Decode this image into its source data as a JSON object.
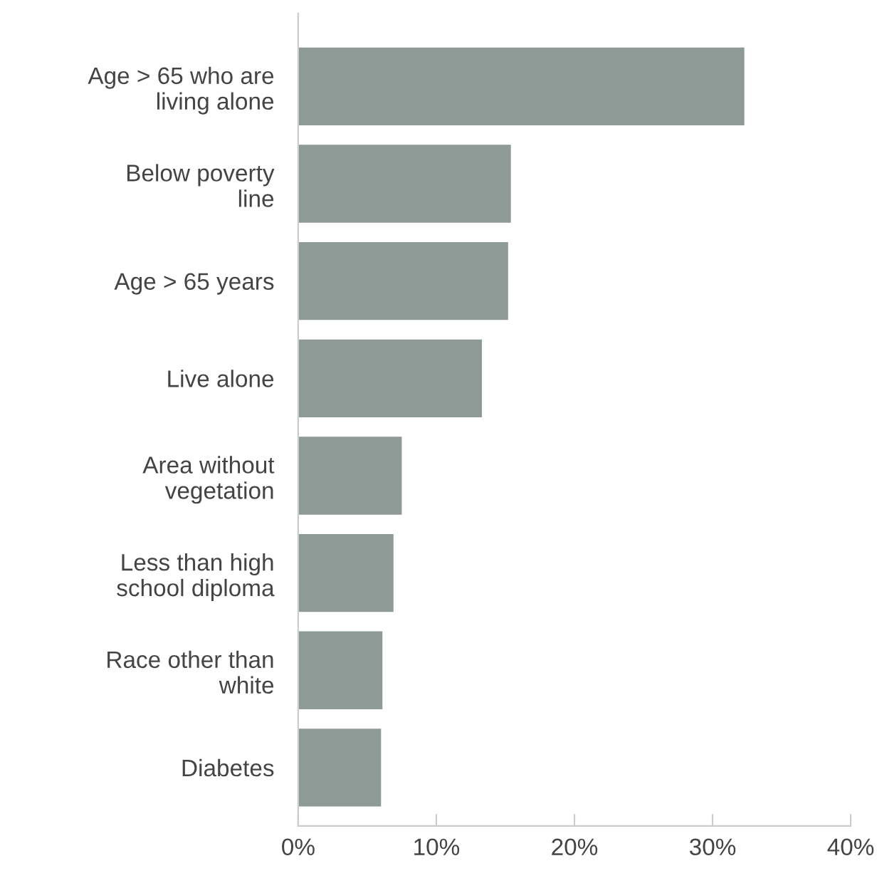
{
  "chart_data": {
    "type": "bar",
    "orientation": "horizontal",
    "categories": [
      "Age > 65 who are\nliving alone",
      "Below poverty\nline",
      "Age > 65 years",
      "Live alone",
      "Area without\nvegetation",
      "Less than high\nschool diploma",
      "Race other than\nwhite",
      "Diabetes"
    ],
    "values": [
      32.3,
      15.4,
      15.2,
      13.3,
      7.5,
      6.9,
      6.1,
      6.0
    ],
    "color": "#8e9a96",
    "xlim": [
      0,
      40
    ],
    "xticks": [
      {
        "value": 0,
        "label": "0%"
      },
      {
        "value": 10,
        "label": "10%"
      },
      {
        "value": 20,
        "label": "20%"
      },
      {
        "value": 30,
        "label": "30%"
      },
      {
        "value": 40,
        "label": "40%"
      }
    ],
    "grid": false,
    "legend": false
  }
}
